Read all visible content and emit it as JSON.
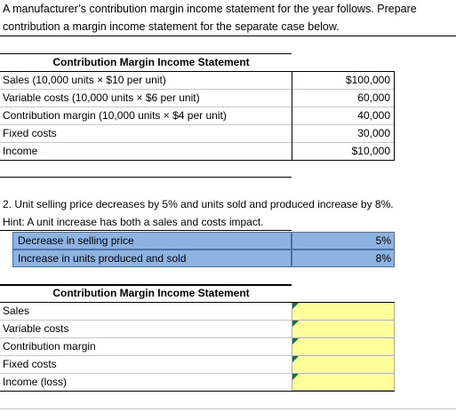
{
  "intro": {
    "line1": "A manufacturer’s contribution margin income statement for the year follows. Prepare",
    "line2": "contribution a margin income statement for the separate case below."
  },
  "statement1": {
    "title": "Contribution Margin Income Statement",
    "rows": [
      {
        "label": "Sales (10,000 units × $10 per unit)",
        "value": "$100,000"
      },
      {
        "label": "Variable costs (10,000 units × $6 per unit)",
        "value": "60,000"
      },
      {
        "label": "Contribution margin (10,000 units × $4 per unit)",
        "value": "40,000"
      },
      {
        "label": "Fixed costs",
        "value": "30,000"
      },
      {
        "label": "Income",
        "value": "$10,000"
      }
    ]
  },
  "case2": {
    "line1": "2. Unit selling price decreases by 5% and units sold and produced increase by 8%.",
    "hint": "Hint: A unit increase has both a sales and costs impact.",
    "inputs": [
      {
        "label": "Decrease in selling price",
        "value": "5%"
      },
      {
        "label": "Increase in units produced and sold",
        "value": "8%"
      }
    ]
  },
  "statement2": {
    "title": "Contribution Margin Income Statement",
    "rows": [
      {
        "label": "Sales",
        "value": ""
      },
      {
        "label": "Variable costs",
        "value": ""
      },
      {
        "label": "Contribution margin",
        "value": ""
      },
      {
        "label": "Fixed costs",
        "value": ""
      },
      {
        "label": "Income (loss)",
        "value": ""
      }
    ]
  },
  "colors": {
    "blue_fill": "#8db3e2",
    "yellow_fill": "#ffff99",
    "marker": "#007a3d"
  }
}
